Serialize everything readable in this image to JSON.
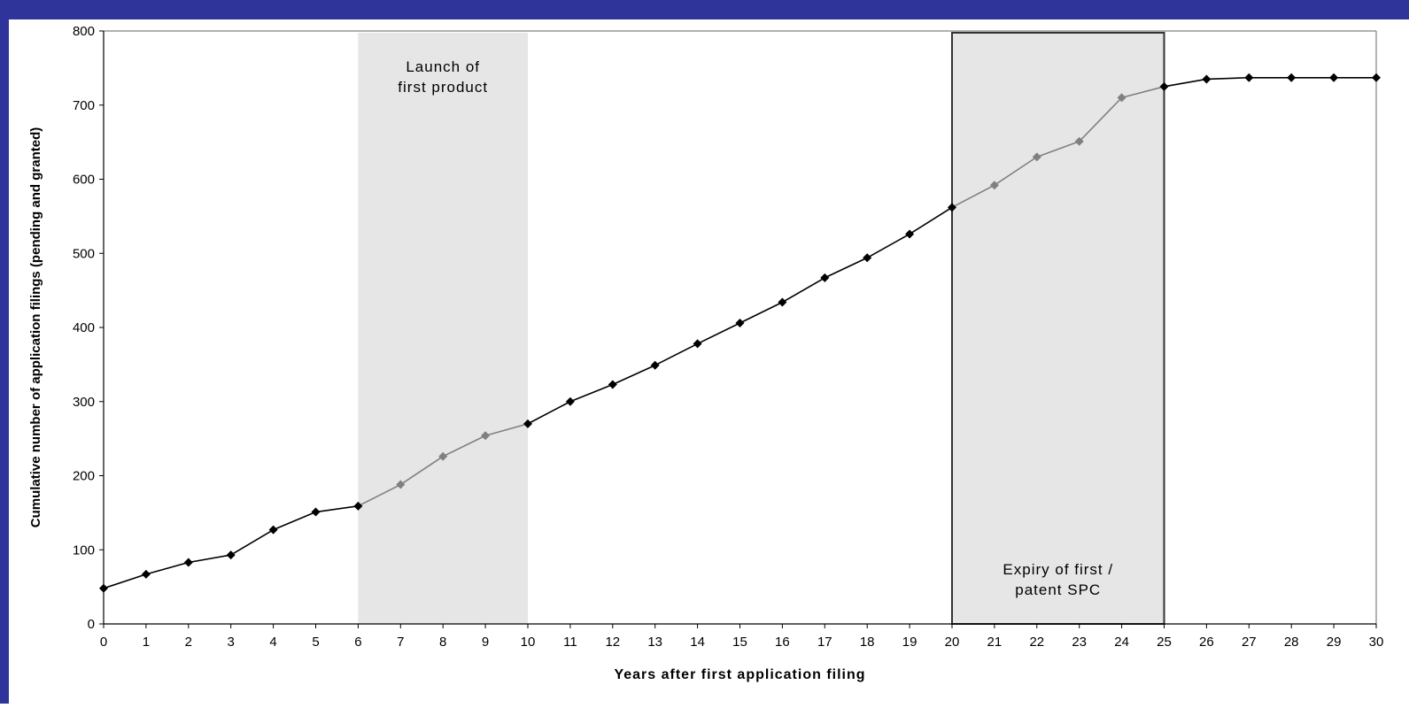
{
  "frame": {
    "color": "#2e3499"
  },
  "chart_data": {
    "type": "line",
    "title": "",
    "xlabel": "Years after first application filing",
    "ylabel": "Cumulative number of application filings (pending and granted)",
    "xlim": [
      0,
      30
    ],
    "ylim": [
      0,
      800
    ],
    "xticks": [
      0,
      1,
      2,
      3,
      4,
      5,
      6,
      7,
      8,
      9,
      10,
      11,
      12,
      13,
      14,
      15,
      16,
      17,
      18,
      19,
      20,
      21,
      22,
      23,
      24,
      25,
      26,
      27,
      28,
      29,
      30
    ],
    "yticks": [
      0,
      100,
      200,
      300,
      400,
      500,
      600,
      700,
      800
    ],
    "grid": false,
    "legend": "none",
    "x": [
      0,
      1,
      2,
      3,
      4,
      5,
      6,
      7,
      8,
      9,
      10,
      11,
      12,
      13,
      14,
      15,
      16,
      17,
      18,
      19,
      20,
      21,
      22,
      23,
      24,
      25,
      26,
      27,
      28,
      29,
      30
    ],
    "values": [
      48,
      67,
      83,
      93,
      127,
      151,
      159,
      188,
      226,
      254,
      270,
      300,
      323,
      349,
      378,
      406,
      434,
      467,
      494,
      526,
      562,
      592,
      630,
      651,
      710,
      725,
      735,
      737,
      737,
      737,
      737
    ],
    "shaded_regions": [
      {
        "label": "Launch of first product",
        "x_start": 6,
        "x_end": 10,
        "bordered": false
      },
      {
        "label": "Expiry of first patent / SPC",
        "x_start": 20,
        "x_end": 25,
        "bordered": true
      }
    ],
    "colors": {
      "series_main": "#000000",
      "series_in_region": "#808080",
      "region_fill": "#e6e6e6",
      "plot_border": "#808080"
    }
  }
}
